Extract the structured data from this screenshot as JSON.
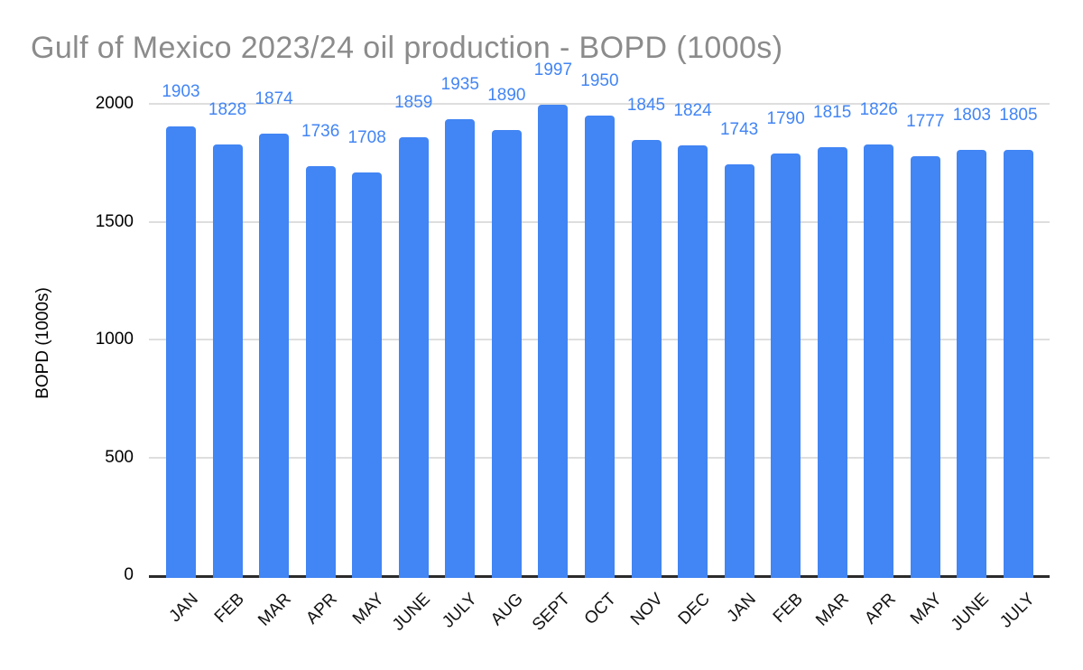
{
  "title": "Gulf of Mexico 2023/24 oil production - BOPD (1000s)",
  "y_axis_title": "BOPD (1000s)",
  "chart_data": {
    "type": "bar",
    "title": "Gulf of Mexico 2023/24 oil production - BOPD (1000s)",
    "xlabel": "",
    "ylabel": "BOPD (1000s)",
    "categories": [
      "JAN",
      "FEB",
      "MAR",
      "APR",
      "MAY",
      "JUNE",
      "JULY",
      "AUG",
      "SEPT",
      "OCT",
      "NOV",
      "DEC",
      "JAN",
      "FEB",
      "MAR",
      "APR",
      "MAY",
      "JUNE",
      "JULY"
    ],
    "values": [
      1903,
      1828,
      1874,
      1736,
      1708,
      1859,
      1935,
      1890,
      1997,
      1950,
      1845,
      1824,
      1743,
      1790,
      1815,
      1826,
      1777,
      1803,
      1805
    ],
    "data_labels_shown": true,
    "ylim": [
      0,
      2000
    ],
    "yticks": [
      0,
      500,
      1000,
      1500,
      2000
    ],
    "grid": true,
    "legend_position": "none",
    "bar_color": "#4285f4",
    "data_label_color": "#4285f4",
    "title_color": "#8b8b8b",
    "gridline_color": "#dedede",
    "axis_line_color": "#2b2b2b"
  }
}
